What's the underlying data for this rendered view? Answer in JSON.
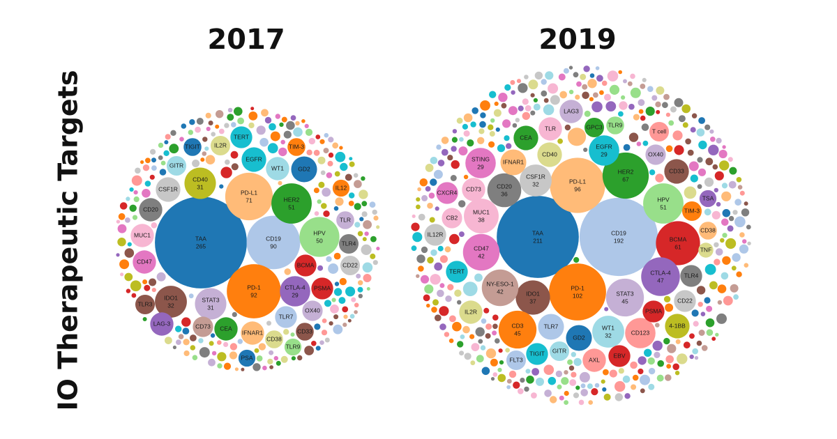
{
  "chart_data": {
    "type": "packed-bubble",
    "title": "IO Therapeutic Targets",
    "panels": [
      {
        "title": "2017",
        "names": [
          "TAA",
          "CD19",
          "PD-L1",
          "PD-1",
          "HER2",
          "HPV",
          "CTLA-4",
          "STAT3",
          "IDO1",
          "CD40",
          "BCMA",
          "PSMA",
          "CD22",
          "TLR4",
          "TLR",
          "IL12",
          "GD2",
          "WT1",
          "EGFR",
          "TERT",
          "TIM-3",
          "IL2R",
          "TIGIT",
          "GITR",
          "CSF1R",
          "CD20",
          "MUC1",
          "CD47",
          "TLR3",
          "LAG-3",
          "CD73",
          "CEA",
          "IFNAR1",
          "CD38",
          "TLR7",
          "OX40",
          "CD33",
          "TLR9",
          "PSA"
        ],
        "values": [
          265,
          90,
          71,
          92,
          51,
          50,
          29,
          31,
          32,
          31,
          15,
          15,
          12,
          12,
          10,
          9,
          21,
          17,
          19,
          15,
          10,
          12,
          10,
          12,
          19,
          17,
          17,
          17,
          12,
          17,
          13,
          17,
          17,
          10,
          15,
          13,
          10,
          9,
          9
        ],
        "value_labels": [
          "265",
          "90",
          "71",
          "92",
          "51",
          "50",
          "29",
          "31",
          "32",
          "31",
          null,
          null,
          null,
          null,
          null,
          null,
          null,
          null,
          null,
          null,
          null,
          null,
          null,
          null,
          null,
          null,
          null,
          null,
          null,
          null,
          null,
          null,
          null,
          null,
          null,
          null,
          null,
          null,
          null
        ],
        "colors": [
          "#1f77b4",
          "#aec7e8",
          "#ffbb78",
          "#ff7f0e",
          "#2ca02c",
          "#98df8a",
          "#9467bd",
          "#c5b0d5",
          "#8c564b",
          "#bcbd22",
          "#d62728",
          "#d62728",
          "#c7c7c7",
          "#7f7f7f",
          "#c5b0d5",
          "#ff7f0e",
          "#1f77b4",
          "#9edae5",
          "#17becf",
          "#17becf",
          "#ff7f0e",
          "#dbdb8d",
          "#1f77b4",
          "#9edae5",
          "#c7c7c7",
          "#7f7f7f",
          "#f7b6d2",
          "#e377c2",
          "#8c564b",
          "#9467bd",
          "#c49c94",
          "#2ca02c",
          "#ffbb78",
          "#dbdb8d",
          "#aec7e8",
          "#c5b0d5",
          "#8c564b",
          "#98df8a",
          "#1f77b4"
        ]
      },
      {
        "title": "2019",
        "names": [
          "TAA",
          "CD19",
          "PD-L1",
          "PD-1",
          "HER2",
          "HPV",
          "BCMA",
          "CTLA-4",
          "STAT3",
          "IDO1",
          "NY-ESO-1",
          "CD47",
          "MUC1",
          "CD20",
          "CSF1R",
          "EGFR",
          "CD3",
          "WT1",
          "CD123",
          "GD2",
          "TLR7",
          "EBV",
          "AXL",
          "GITR",
          "TIGIT",
          "FLT3",
          "IL2R",
          "TERT",
          "IL12R",
          "CB2",
          "CXCR4",
          "CD73",
          "STING",
          "IFNAR1",
          "CD40",
          "CEA",
          "TLR",
          "LAG3",
          "GPC3",
          "TLR9",
          "OX40",
          "T cell",
          "CD33",
          "TSA",
          "TIM-3",
          "CD38",
          "TNF",
          "TLR4",
          "CD22",
          "4-1BB",
          "PSMA"
        ],
        "values": [
          211,
          192,
          96,
          102,
          67,
          51,
          61,
          47,
          45,
          37,
          42,
          42,
          38,
          36,
          32,
          29,
          45,
          32,
          29,
          21,
          21,
          15,
          17,
          12,
          15,
          12,
          17,
          15,
          15,
          13,
          15,
          17,
          29,
          21,
          19,
          19,
          17,
          17,
          12,
          10,
          13,
          12,
          19,
          9,
          12,
          10,
          7,
          15,
          15,
          19,
          15
        ],
        "value_labels": [
          "211",
          "192",
          "96",
          "102",
          "67",
          "51",
          "61",
          "47",
          "45",
          "37",
          "42",
          "42",
          "38",
          "36",
          "32",
          "29",
          "45",
          "32",
          null,
          null,
          null,
          null,
          null,
          null,
          null,
          null,
          null,
          null,
          null,
          null,
          null,
          null,
          "29",
          null,
          null,
          null,
          null,
          null,
          null,
          null,
          null,
          null,
          null,
          null,
          null,
          null,
          null,
          null,
          null,
          null,
          null
        ],
        "colors": [
          "#1f77b4",
          "#aec7e8",
          "#ffbb78",
          "#ff7f0e",
          "#2ca02c",
          "#98df8a",
          "#d62728",
          "#9467bd",
          "#c5b0d5",
          "#8c564b",
          "#c49c94",
          "#e377c2",
          "#f7b6d2",
          "#7f7f7f",
          "#c7c7c7",
          "#17becf",
          "#ff7f0e",
          "#9edae5",
          "#ff9896",
          "#1f77b4",
          "#aec7e8",
          "#d62728",
          "#ff9896",
          "#9edae5",
          "#17becf",
          "#aec7e8",
          "#dbdb8d",
          "#17becf",
          "#c7c7c7",
          "#f7b6d2",
          "#e377c2",
          "#f7b6d2",
          "#e377c2",
          "#ffbb78",
          "#dbdb8d",
          "#2ca02c",
          "#f7b6d2",
          "#c5b0d5",
          "#2ca02c",
          "#98df8a",
          "#c5b0d5",
          "#ff9896",
          "#8c564b",
          "#9467bd",
          "#ff7f0e",
          "#ffbb78",
          "#dbdb8d",
          "#7f7f7f",
          "#c7c7c7",
          "#bcbd22",
          "#d62728"
        ]
      }
    ]
  }
}
